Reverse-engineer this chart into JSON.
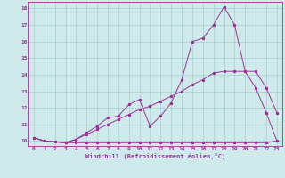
{
  "xlabel": "Windchill (Refroidissement éolien,°C)",
  "bg_color": "#ceeaea",
  "grid_color": "#aacccc",
  "line_color": "#993399",
  "xlim": [
    -0.5,
    23.5
  ],
  "ylim": [
    9.7,
    18.4
  ],
  "xticks": [
    0,
    1,
    2,
    3,
    4,
    5,
    6,
    7,
    8,
    9,
    10,
    11,
    12,
    13,
    14,
    15,
    16,
    17,
    18,
    19,
    20,
    21,
    22,
    23
  ],
  "yticks": [
    10,
    11,
    12,
    13,
    14,
    15,
    16,
    17,
    18
  ],
  "curve1_x": [
    0,
    1,
    2,
    3,
    4,
    5,
    6,
    7,
    8,
    9,
    10,
    11,
    12,
    13,
    14,
    15,
    16,
    17,
    18,
    19,
    20,
    21,
    22,
    23
  ],
  "curve1_y": [
    10.2,
    10.0,
    9.95,
    9.9,
    9.9,
    9.9,
    9.9,
    9.9,
    9.9,
    9.9,
    9.9,
    9.9,
    9.9,
    9.9,
    9.9,
    9.9,
    9.9,
    9.9,
    9.9,
    9.9,
    9.9,
    9.9,
    9.9,
    10.0
  ],
  "curve2_x": [
    0,
    1,
    2,
    3,
    4,
    5,
    6,
    7,
    8,
    9,
    10,
    11,
    12,
    13,
    14,
    15,
    16,
    17,
    18,
    19,
    20,
    21,
    22,
    23
  ],
  "curve2_y": [
    10.2,
    10.0,
    9.95,
    9.9,
    10.1,
    10.4,
    10.7,
    11.0,
    11.3,
    11.6,
    11.9,
    12.1,
    12.4,
    12.7,
    13.0,
    13.4,
    13.7,
    14.1,
    14.2,
    14.2,
    14.2,
    13.2,
    11.7,
    10.0
  ],
  "curve3_x": [
    0,
    1,
    2,
    3,
    4,
    5,
    6,
    7,
    8,
    9,
    10,
    11,
    12,
    13,
    14,
    15,
    16,
    17,
    18,
    19,
    20,
    21,
    22,
    23
  ],
  "curve3_y": [
    10.2,
    10.0,
    9.95,
    9.9,
    10.1,
    10.5,
    10.9,
    11.4,
    11.5,
    12.2,
    12.5,
    10.9,
    11.5,
    12.3,
    13.7,
    16.0,
    16.2,
    17.0,
    18.1,
    17.0,
    14.2,
    14.2,
    13.2,
    11.7
  ]
}
